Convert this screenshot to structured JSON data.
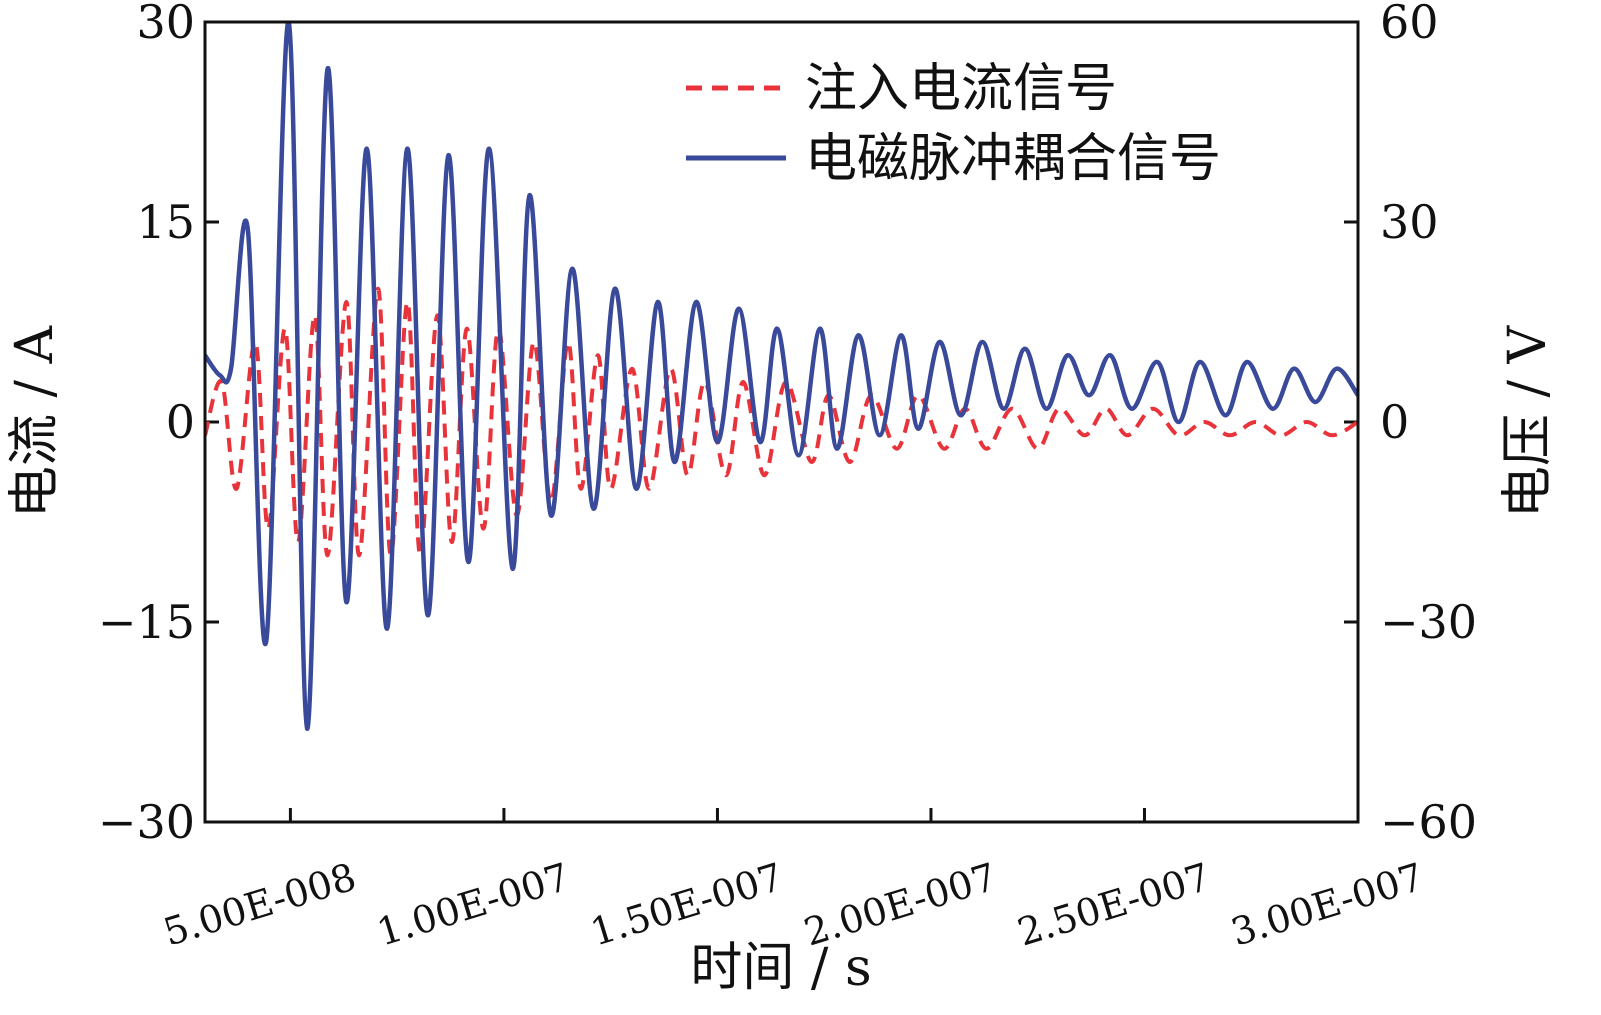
{
  "chart_data": {
    "type": "line",
    "title": "",
    "xlabel": "时间 / s",
    "ylabel_left": "电流 / A",
    "ylabel_right": "电压 / V",
    "xlim": [
      3e-08,
      3e-07
    ],
    "ylim_left": [
      -30,
      30
    ],
    "ylim_right": [
      -60,
      60
    ],
    "x_ticks": [
      5e-08,
      1e-07,
      1.5e-07,
      2e-07,
      2.5e-07,
      3e-07
    ],
    "x_tick_labels": [
      "5.00E-008",
      "1.00E-007",
      "1.50E-007",
      "2.00E-007",
      "2.50E-007",
      "3.00E-007"
    ],
    "y_left_ticks": [
      30,
      15,
      0,
      -15,
      -30
    ],
    "y_left_tick_labels": [
      "30",
      "15",
      "0",
      "−15",
      "−30"
    ],
    "y_right_ticks": [
      60,
      30,
      0,
      -30,
      -60
    ],
    "y_right_tick_labels": [
      "60",
      "30",
      "0",
      "−30",
      "−60"
    ],
    "legend_position": "top-right",
    "series": [
      {
        "name": "注入电流信号",
        "axis": "left",
        "color": "#e8333a",
        "style": "dashed",
        "x": [
          3e-08,
          3.39e-08,
          3.74e-08,
          4.18e-08,
          4.48e-08,
          4.87e-08,
          5.18e-08,
          5.57e-08,
          5.87e-08,
          6.31e-08,
          6.61e-08,
          7.05e-08,
          7.35e-08,
          7.74e-08,
          8.04e-08,
          8.44e-08,
          8.78e-08,
          9.13e-08,
          9.52e-08,
          9.87e-08,
          1.03e-07,
          1.07e-07,
          1.11e-07,
          1.15e-07,
          1.18e-07,
          1.22e-07,
          1.25e-07,
          1.3e-07,
          1.34e-07,
          1.39e-07,
          1.43e-07,
          1.47e-07,
          1.52e-07,
          1.56e-07,
          1.61e-07,
          1.66e-07,
          1.72e-07,
          1.76e-07,
          1.81e-07,
          1.86e-07,
          1.92e-07,
          1.97e-07,
          2.03e-07,
          2.08e-07,
          2.13e-07,
          2.19e-07,
          2.25e-07,
          2.3e-07,
          2.36e-07,
          2.41e-07,
          2.46e-07,
          2.52e-07,
          2.58e-07,
          2.64e-07,
          2.7e-07,
          2.76e-07,
          2.82e-07,
          2.88e-07,
          2.94e-07,
          3e-07
        ],
        "values": [
          -1,
          3,
          -5,
          6,
          -8,
          7,
          -9,
          8,
          -10,
          9,
          -10,
          10,
          -10,
          9,
          -10,
          8,
          -9,
          7,
          -8,
          7,
          -7,
          6,
          -6,
          6,
          -5,
          5,
          -5,
          4,
          -5,
          4,
          -4,
          3,
          -4,
          3,
          -4,
          3,
          -3,
          2,
          -3,
          2,
          -2,
          2,
          -2,
          1,
          -2,
          1,
          -2,
          1,
          -1,
          1,
          -1,
          1,
          -1,
          0,
          -1,
          0,
          -1,
          0,
          -1,
          0
        ]
      },
      {
        "name": "电磁脉冲耦合信号",
        "axis": "right",
        "color": "#3a4a9a",
        "style": "solid",
        "x": [
          3e-08,
          3.35e-08,
          3.61e-08,
          4e-08,
          4.43e-08,
          4.96e-08,
          5.39e-08,
          5.87e-08,
          6.31e-08,
          6.79e-08,
          7.26e-08,
          7.74e-08,
          8.22e-08,
          8.7e-08,
          9.17e-08,
          9.65e-08,
          1.02e-07,
          1.06e-07,
          1.11e-07,
          1.16e-07,
          1.21e-07,
          1.26e-07,
          1.31e-07,
          1.36e-07,
          1.4e-07,
          1.45e-07,
          1.5e-07,
          1.55e-07,
          1.6e-07,
          1.64e-07,
          1.69e-07,
          1.74e-07,
          1.78e-07,
          1.83e-07,
          1.88e-07,
          1.93e-07,
          1.97e-07,
          2.02e-07,
          2.07e-07,
          2.12e-07,
          2.17e-07,
          2.22e-07,
          2.27e-07,
          2.32e-07,
          2.37e-07,
          2.42e-07,
          2.47e-07,
          2.53e-07,
          2.58e-07,
          2.63e-07,
          2.69e-07,
          2.74e-07,
          2.8e-07,
          2.85e-07,
          2.9e-07,
          2.95e-07,
          3e-07
        ],
        "values": [
          10,
          7,
          8,
          29,
          -33,
          60,
          -46,
          53,
          -27,
          41,
          -31,
          41,
          -29,
          40,
          -21,
          41,
          -22,
          34,
          -14,
          23,
          -13,
          20,
          -10,
          18,
          -6,
          18,
          -3,
          17,
          -3,
          14,
          -5,
          14,
          -4,
          13,
          -2,
          13,
          -1,
          12,
          1,
          12,
          2,
          11,
          2,
          10,
          4,
          10,
          2,
          9,
          0,
          9,
          1,
          9,
          2,
          8,
          3,
          8,
          4
        ]
      }
    ]
  }
}
